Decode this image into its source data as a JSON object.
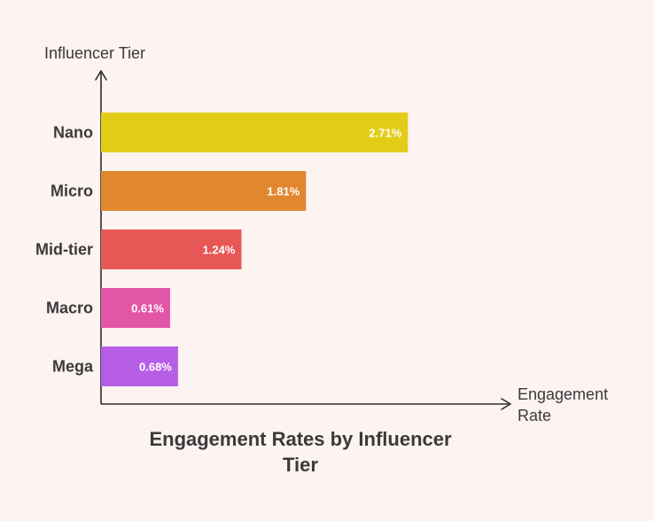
{
  "chart_data": {
    "type": "bar",
    "orientation": "horizontal",
    "title": "Engagement Rates by Influencer Tier",
    "title_lines": [
      "Engagement Rates by Influencer",
      "Tier"
    ],
    "ylabel": "Influencer Tier",
    "xlabel": "Engagement Rate",
    "xlabel_lines": [
      "Engagement",
      "Rate"
    ],
    "categories": [
      "Nano",
      "Micro",
      "Mid-tier",
      "Macro",
      "Mega"
    ],
    "values": [
      2.71,
      1.81,
      1.24,
      0.61,
      0.68
    ],
    "value_labels": [
      "2.71%",
      "1.81%",
      "1.24%",
      "0.61%",
      "0.68%"
    ],
    "colors": [
      "#e2cc18",
      "#e1882f",
      "#e65756",
      "#e356a7",
      "#b65ee6"
    ],
    "xlim": [
      0,
      3.6
    ],
    "grid": false
  }
}
